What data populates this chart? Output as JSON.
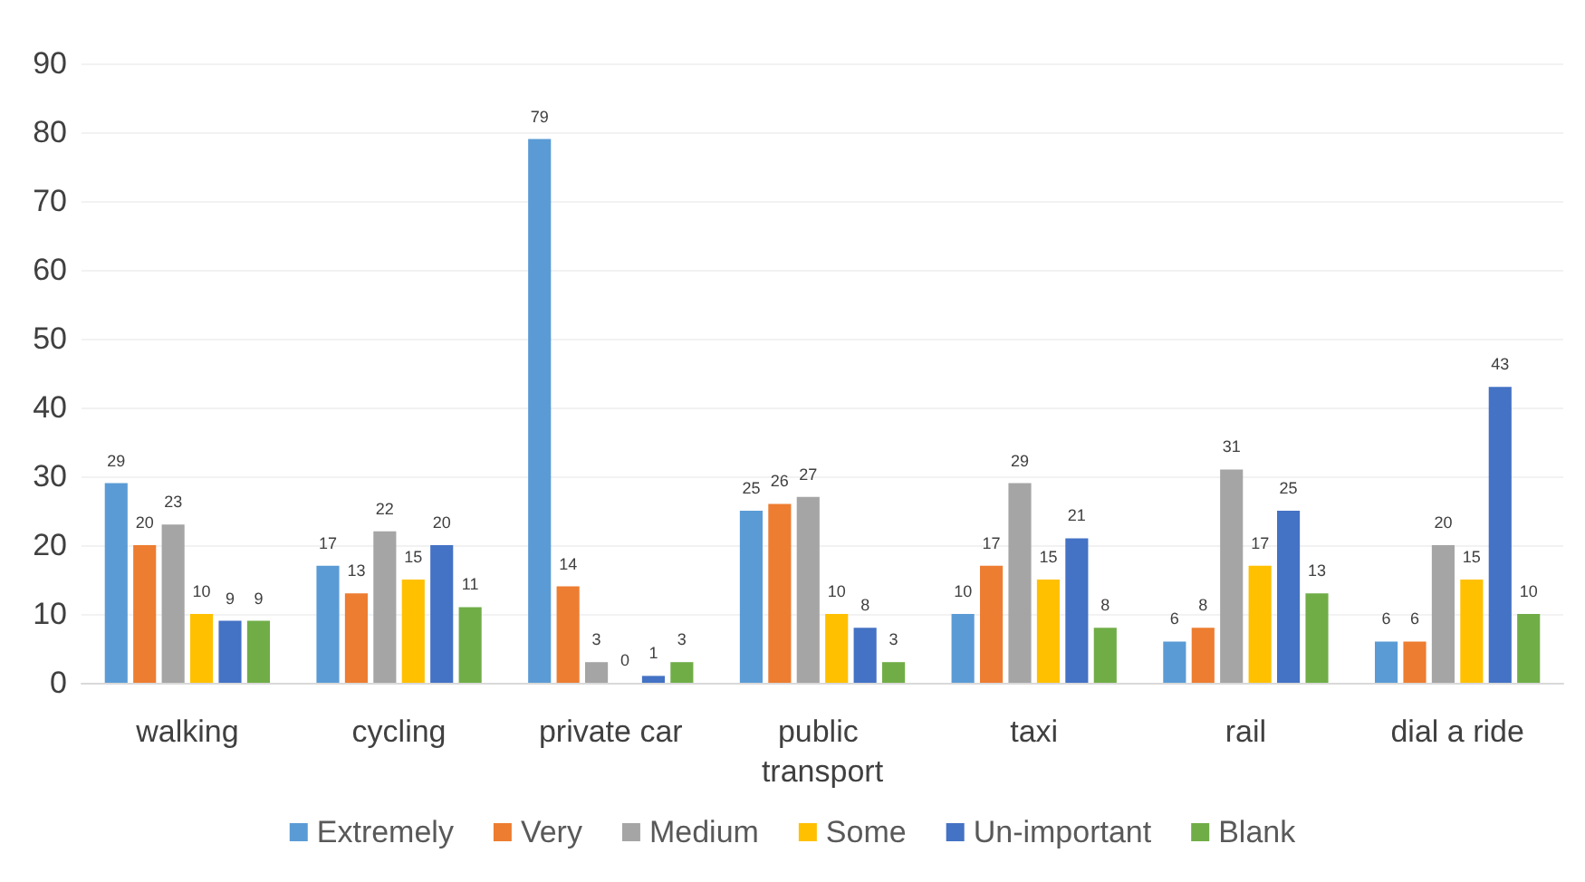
{
  "chart_data": {
    "type": "bar",
    "categories": [
      "walking",
      "cycling",
      "private car",
      "public transport",
      "taxi",
      "rail",
      "dial a ride"
    ],
    "series": [
      {
        "name": "Extremely",
        "color": "#5b9bd5",
        "values": [
          29,
          17,
          79,
          25,
          10,
          6,
          6
        ]
      },
      {
        "name": "Very",
        "color": "#ed7d31",
        "values": [
          20,
          13,
          14,
          26,
          17,
          8,
          6
        ]
      },
      {
        "name": "Medium",
        "color": "#a5a5a5",
        "values": [
          23,
          22,
          3,
          27,
          29,
          31,
          20
        ]
      },
      {
        "name": "Some",
        "color": "#ffc000",
        "values": [
          10,
          15,
          0,
          10,
          15,
          17,
          15
        ]
      },
      {
        "name": "Un-important",
        "color": "#4472c4",
        "values": [
          9,
          20,
          1,
          8,
          21,
          25,
          43
        ]
      },
      {
        "name": "Blank",
        "color": "#70ad47",
        "values": [
          9,
          11,
          3,
          3,
          8,
          13,
          10
        ]
      }
    ],
    "ylim": [
      0,
      90
    ],
    "yticks": [
      0,
      10,
      20,
      30,
      40,
      50,
      60,
      70,
      80,
      90
    ],
    "grid": "y",
    "legend": "bottom",
    "data_labels": true
  }
}
